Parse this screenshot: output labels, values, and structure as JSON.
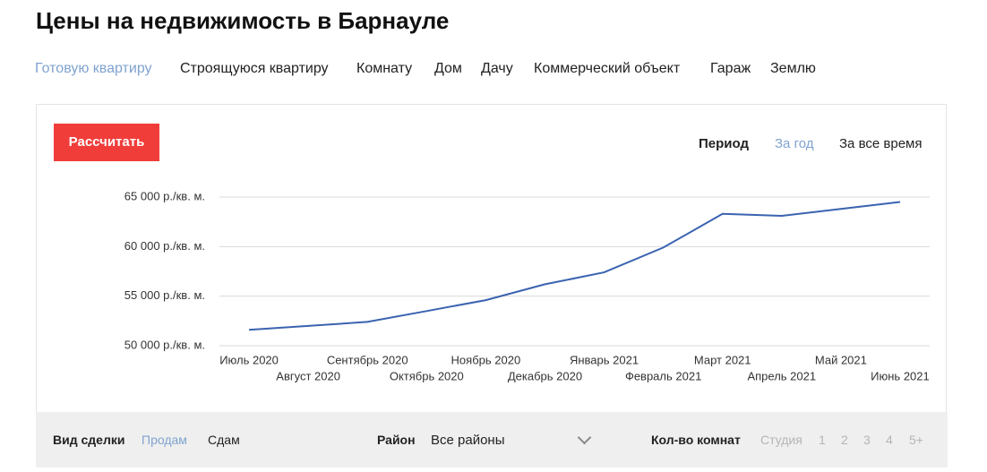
{
  "header": {
    "title": "Цены на недвижимость в Барнауле"
  },
  "tabs": [
    "Готовую квартиру",
    "Строящуюся квартиру",
    "Комнату",
    "Дом",
    "Дачу",
    "Коммерческий объект",
    "Гараж",
    "Землю"
  ],
  "button": "Рассчитать",
  "period": {
    "label": "Период",
    "options": [
      "За год",
      "За все время"
    ]
  },
  "chart_data": {
    "type": "line",
    "categories": [
      "Июль 2020",
      "Август 2020",
      "Сентябрь 2020",
      "Октябрь 2020",
      "Ноябрь 2020",
      "Декабрь 2020",
      "Январь 2021",
      "Февраль 2021",
      "Март 2021",
      "Апрель 2021",
      "Май 2021",
      "Июнь 2021"
    ],
    "values": [
      51600,
      52000,
      52400,
      53500,
      54600,
      56200,
      57400,
      59900,
      63300,
      63100,
      63800,
      64500
    ],
    "color": "#3a63b0",
    "ylim": [
      50000,
      65000
    ],
    "yticks": [
      {
        "value": 50000,
        "label": "50 000 р./кв. м."
      },
      {
        "value": 55000,
        "label": "55 000 р./кв. м."
      },
      {
        "value": 60000,
        "label": "60 000 р./кв. м."
      },
      {
        "value": 65000,
        "label": "65 000 р./кв. м."
      }
    ],
    "grid": true
  },
  "filters": {
    "deal": {
      "label": "Вид сделки",
      "options": [
        "Продам",
        "Сдам"
      ]
    },
    "district": {
      "label": "Район",
      "value": "Все районы"
    },
    "rooms": {
      "label": "Кол-во комнат",
      "options": [
        "Студия",
        "1",
        "2",
        "3",
        "4",
        "5+"
      ]
    }
  }
}
